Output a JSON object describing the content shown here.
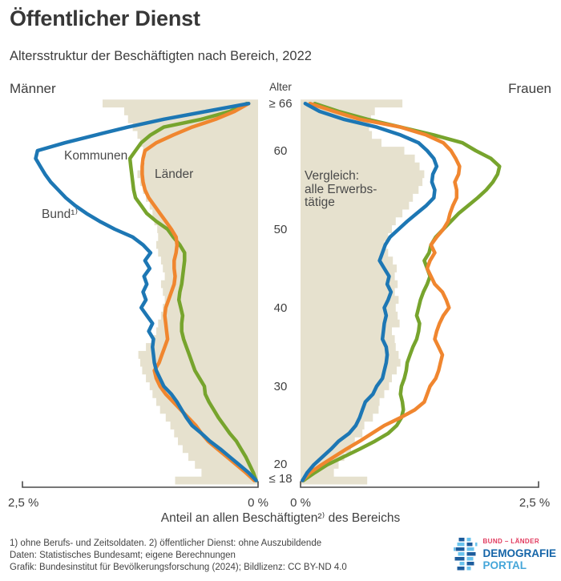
{
  "header": {
    "title": "Öffentlicher Dienst",
    "subtitle": "Altersstruktur der Beschäftigten nach Bereich, 2022"
  },
  "panel_labels": {
    "left": "Männer",
    "right": "Frauen",
    "age_header": "Alter"
  },
  "series_labels": {
    "kommunen": "Kommunen",
    "laender": "Länder",
    "bund": "Bund¹⁾",
    "vergleich": "Vergleich:\nalle Erwerbs-\ntätige"
  },
  "axis": {
    "x_left_outer": "2,5 %",
    "x_left_inner": "0 %",
    "x_right_inner": "0 %",
    "x_right_outer": "2,5 %",
    "x_title": "Anteil an allen Beschäftigten²⁾ des Bereichs",
    "age_ticks": [
      {
        "label": "≥ 66",
        "age": 66
      },
      {
        "label": "60",
        "age": 60
      },
      {
        "label": "50",
        "age": 50
      },
      {
        "label": "40",
        "age": 40
      },
      {
        "label": "30",
        "age": 30
      },
      {
        "label": "20",
        "age": 20
      },
      {
        "label": "≤ 18",
        "age": 18
      }
    ]
  },
  "footnotes": [
    "1) ohne Berufs- und Zeitsoldaten. 2) öffentlicher Dienst: ohne Auszubildende",
    "Daten: Statistisches Bundesamt; eigene Berechnungen",
    "Grafik: Bundesinstitut für Bevölkerungsforschung (2024); Bildlizenz: CC BY-ND 4.0"
  ],
  "logo": {
    "line1": "BUND – LÄNDER",
    "line2": "DEMOGRAFIE",
    "line3": "PORTAL"
  },
  "colors": {
    "bund": "#1d77b4",
    "laender": "#f0862f",
    "kommunen": "#77a42d",
    "vergleich": "#e6e1ce",
    "axis": "#4a4a4a",
    "text": "#3d3d3d",
    "logo_red": "#e13a5e",
    "logo_dark_blue": "#1565a8",
    "logo_light_blue": "#45a6d9",
    "logo_icon_dark": "#1c5c9c",
    "logo_icon_light": "#6ac4ee"
  },
  "chart_data": {
    "type": "area",
    "subtype": "population-pyramid",
    "title": "Öffentlicher Dienst – Altersstruktur der Beschäftigten nach Bereich, 2022",
    "xlabel": "Anteil an allen Beschäftigten des Bereichs (%)",
    "ylabel": "Alter",
    "x_max_percent": 2.5,
    "age_range": [
      "≤ 18",
      "≥ 66"
    ],
    "ages": [
      18,
      19,
      20,
      21,
      22,
      23,
      24,
      25,
      26,
      27,
      28,
      29,
      30,
      31,
      32,
      33,
      34,
      35,
      36,
      37,
      38,
      39,
      40,
      41,
      42,
      43,
      44,
      45,
      46,
      47,
      48,
      49,
      50,
      51,
      52,
      53,
      54,
      55,
      56,
      57,
      58,
      59,
      60,
      61,
      62,
      63,
      64,
      65,
      66
    ],
    "men": {
      "bund": [
        0.02,
        0.1,
        0.2,
        0.3,
        0.4,
        0.51,
        0.6,
        0.7,
        0.76,
        0.81,
        0.86,
        0.92,
        1.0,
        1.04,
        1.08,
        1.1,
        1.11,
        1.12,
        1.11,
        1.16,
        1.12,
        1.18,
        1.24,
        1.19,
        1.22,
        1.18,
        1.21,
        1.15,
        1.2,
        1.14,
        1.22,
        1.33,
        1.52,
        1.68,
        1.82,
        1.94,
        2.04,
        2.12,
        2.2,
        2.26,
        2.31,
        2.36,
        2.34,
        2.05,
        1.72,
        1.38,
        1.0,
        0.55,
        0.1
      ],
      "laender": [
        0.04,
        0.13,
        0.23,
        0.33,
        0.43,
        0.53,
        0.6,
        0.66,
        0.74,
        0.82,
        0.9,
        0.98,
        1.04,
        1.08,
        1.1,
        1.05,
        1.02,
        0.99,
        0.96,
        0.97,
        0.98,
        0.99,
        0.98,
        0.95,
        0.92,
        0.89,
        0.88,
        0.89,
        0.89,
        0.87,
        0.86,
        0.87,
        0.92,
        0.98,
        1.04,
        1.1,
        1.16,
        1.2,
        1.22,
        1.23,
        1.23,
        1.22,
        1.2,
        1.08,
        0.9,
        0.7,
        0.45,
        0.25,
        0.1
      ],
      "kommunen": [
        0.02,
        0.05,
        0.09,
        0.13,
        0.18,
        0.23,
        0.3,
        0.36,
        0.42,
        0.47,
        0.52,
        0.56,
        0.57,
        0.62,
        0.67,
        0.7,
        0.73,
        0.76,
        0.79,
        0.81,
        0.81,
        0.8,
        0.82,
        0.84,
        0.83,
        0.81,
        0.8,
        0.79,
        0.78,
        0.78,
        0.83,
        0.9,
        0.96,
        1.08,
        1.18,
        1.24,
        1.3,
        1.32,
        1.33,
        1.34,
        1.35,
        1.36,
        1.3,
        1.24,
        1.14,
        1.0,
        0.6,
        0.3,
        0.12
      ],
      "alle_erwerbstaetige": [
        0.88,
        0.6,
        0.67,
        0.74,
        0.8,
        0.85,
        0.89,
        0.93,
        0.98,
        1.04,
        1.08,
        1.12,
        1.15,
        1.19,
        1.23,
        1.25,
        1.27,
        1.19,
        1.12,
        1.08,
        1.06,
        1.03,
        1.01,
        0.99,
        1.01,
        1.03,
        0.99,
        1.01,
        1.03,
        1.06,
        1.08,
        1.06,
        1.07,
        1.1,
        1.12,
        1.15,
        1.19,
        1.22,
        1.25,
        1.28,
        1.23,
        1.2,
        1.22,
        1.25,
        1.28,
        1.33,
        1.38,
        1.42,
        1.65
      ]
    },
    "women": {
      "bund": [
        0.02,
        0.07,
        0.14,
        0.23,
        0.32,
        0.4,
        0.51,
        0.58,
        0.62,
        0.65,
        0.68,
        0.76,
        0.8,
        0.86,
        0.88,
        0.9,
        0.91,
        0.9,
        0.86,
        0.87,
        0.88,
        0.9,
        0.88,
        0.92,
        0.95,
        0.91,
        0.93,
        0.88,
        0.83,
        0.86,
        0.89,
        0.94,
        1.03,
        1.12,
        1.22,
        1.32,
        1.4,
        1.41,
        1.38,
        1.39,
        1.43,
        1.4,
        1.33,
        1.24,
        1.05,
        0.8,
        0.45,
        0.2,
        0.05
      ],
      "laender": [
        0.02,
        0.1,
        0.22,
        0.35,
        0.48,
        0.62,
        0.75,
        0.88,
        1.05,
        1.2,
        1.3,
        1.33,
        1.36,
        1.42,
        1.45,
        1.47,
        1.49,
        1.45,
        1.41,
        1.43,
        1.46,
        1.5,
        1.56,
        1.53,
        1.49,
        1.41,
        1.37,
        1.33,
        1.36,
        1.41,
        1.37,
        1.43,
        1.5,
        1.55,
        1.57,
        1.6,
        1.64,
        1.64,
        1.62,
        1.66,
        1.67,
        1.63,
        1.58,
        1.5,
        1.32,
        1.05,
        0.62,
        0.35,
        0.1
      ],
      "kommunen": [
        0.03,
        0.15,
        0.28,
        0.45,
        0.62,
        0.78,
        0.92,
        1.01,
        1.06,
        1.08,
        1.07,
        1.05,
        1.06,
        1.09,
        1.11,
        1.12,
        1.15,
        1.18,
        1.22,
        1.24,
        1.25,
        1.22,
        1.24,
        1.26,
        1.29,
        1.33,
        1.36,
        1.33,
        1.3,
        1.35,
        1.37,
        1.42,
        1.5,
        1.58,
        1.66,
        1.76,
        1.86,
        1.95,
        2.02,
        2.07,
        2.09,
        2.0,
        1.84,
        1.7,
        1.4,
        1.05,
        0.7,
        0.4,
        0.15
      ],
      "alle_erwerbstaetige": [
        0.7,
        0.35,
        0.4,
        0.46,
        0.53,
        0.57,
        0.65,
        0.67,
        0.76,
        0.82,
        0.83,
        0.88,
        0.93,
        0.96,
        1.01,
        1.05,
        1.03,
        1.0,
        0.99,
        0.96,
        1.04,
        1.02,
        1.0,
        1.03,
        0.99,
        1.02,
        0.99,
        1.01,
        0.97,
        0.92,
        0.88,
        0.92,
        0.96,
        1.0,
        1.07,
        1.14,
        1.18,
        1.24,
        1.28,
        1.3,
        1.25,
        1.2,
        1.09,
        0.85,
        0.75,
        0.72,
        0.74,
        0.78,
        1.07
      ]
    },
    "legend": [
      {
        "name": "Bund¹⁾",
        "color": "#1d77b4"
      },
      {
        "name": "Länder",
        "color": "#f0862f"
      },
      {
        "name": "Kommunen",
        "color": "#77a42d"
      },
      {
        "name": "Vergleich: alle Erwerbstätige",
        "color": "#e6e1ce"
      }
    ]
  }
}
